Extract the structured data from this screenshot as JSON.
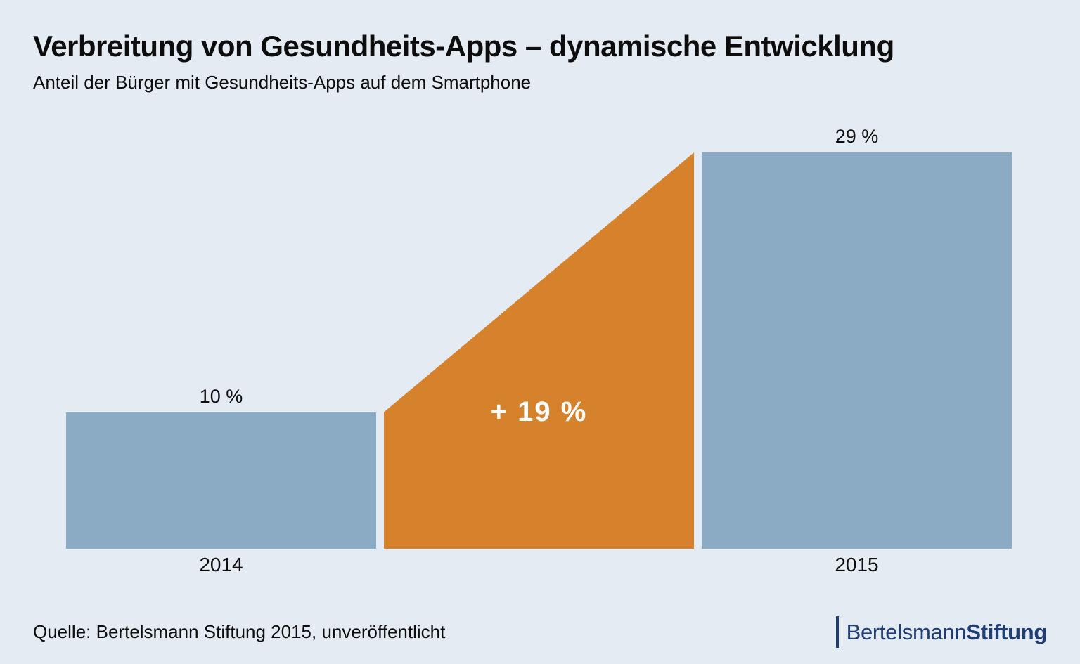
{
  "header": {
    "title": "Verbreitung von Gesundheits-Apps – dynamische Entwicklung",
    "subtitle": "Anteil der Bürger mit Gesundheits-Apps auf dem Smartphone"
  },
  "chart_data": {
    "type": "bar",
    "title": "Verbreitung von Gesundheits-Apps – dynamische Entwicklung",
    "subtitle": "Anteil der Bürger mit Gesundheits-Apps auf dem Smartphone",
    "categories": [
      "2014",
      "2015"
    ],
    "values": [
      10,
      29
    ],
    "value_labels": [
      "10 %",
      "29 %"
    ],
    "delta_label": "+ 19 %",
    "unit": "%",
    "ylim": [
      0,
      29
    ],
    "grid": false,
    "legend": "none",
    "annotation": "Orange Fläche verbindet die Balken und zeigt den Zuwachs von + 19 Prozentpunkten"
  },
  "footer": {
    "source": "Quelle: Bertelsmann Stiftung 2015, unveröffentlicht",
    "logo": {
      "name_regular": "Bertelsmann",
      "name_bold": "Stiftung"
    }
  },
  "colors": {
    "background": "#e4ebf2",
    "bar": "#8aabc3",
    "accent": "#d6812b",
    "navy": "#1f3e74",
    "text": "#0d0d0d",
    "delta_text": "#ffffff"
  }
}
